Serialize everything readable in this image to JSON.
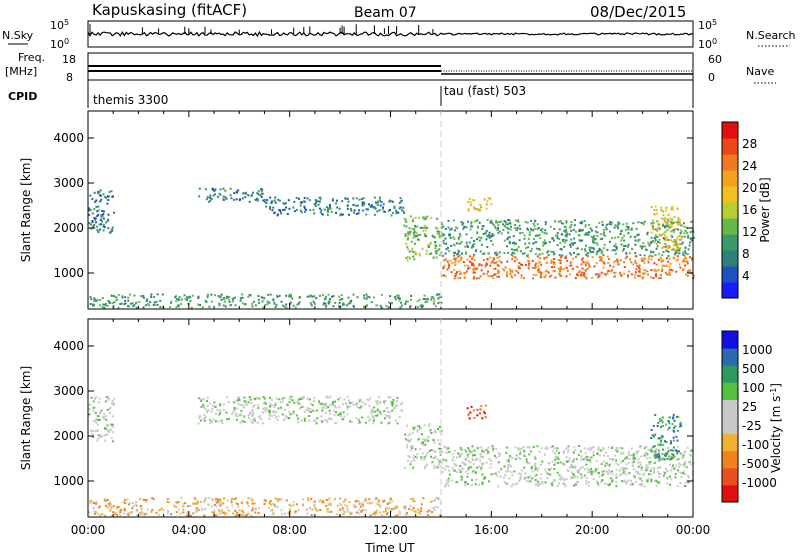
{
  "header": {
    "station": "Kapuskasing (fitACF)",
    "beam": "Beam 07",
    "date": "08/Dec/2015"
  },
  "strips": {
    "nsky_label": "N.Sky",
    "nsearch_label": "N.Search",
    "freq_label_1": "Freq.",
    "freq_label_2": "[MHz]",
    "nave_label": "Nave",
    "cpid_label": "CPID",
    "nsky_ticks": [
      "10^5",
      "10^0"
    ],
    "nsearch_ticks": [
      "10^5",
      "10^0"
    ],
    "freq_ticks": [
      "18",
      "8"
    ],
    "nave_ticks": [
      "60",
      "0"
    ],
    "cpid_programs": [
      {
        "name": "themis 3300",
        "start_hour": 0,
        "end_hour": 14
      },
      {
        "name": "tau (fast) 503",
        "start_hour": 14,
        "end_hour": 24
      }
    ]
  },
  "chart_data": [
    {
      "type": "heatmap",
      "panel": "power",
      "xlabel": "",
      "ylabel": "Slant Range [km]",
      "xlim": [
        0,
        24
      ],
      "ylim": [
        200,
        4600
      ],
      "y_ticks": [
        1000,
        2000,
        3000,
        4000
      ],
      "colorbar": {
        "label": "Power [dB]",
        "ticks": [
          "4",
          "8",
          "12",
          "16",
          "20",
          "24",
          "28"
        ],
        "colors": [
          "#1a1aff",
          "#2050c0",
          "#2f7f7a",
          "#3a9a6a",
          "#66b84a",
          "#b8cc33",
          "#f0c020",
          "#f5a020",
          "#f07820",
          "#e84818",
          "#e01010"
        ]
      },
      "regions": [
        {
          "from_hour": 0.0,
          "to_hour": 1.0,
          "range_km": [
            1900,
            2900
          ],
          "level": 2
        },
        {
          "from_hour": 4.3,
          "to_hour": 7.0,
          "range_km": [
            2600,
            2900
          ],
          "level": 2
        },
        {
          "from_hour": 7.0,
          "to_hour": 12.5,
          "range_km": [
            2300,
            2700
          ],
          "level": 2
        },
        {
          "from_hour": 12.5,
          "to_hour": 14.0,
          "range_km": [
            1300,
            2300
          ],
          "level": 4
        },
        {
          "from_hour": 14.0,
          "to_hour": 24.0,
          "range_km": [
            900,
            1400
          ],
          "level": 8
        },
        {
          "from_hour": 14.0,
          "to_hour": 24.0,
          "range_km": [
            1400,
            2200
          ],
          "level": 3
        },
        {
          "from_hour": 0.0,
          "to_hour": 14.0,
          "range_km": [
            250,
            550
          ],
          "level": 3
        },
        {
          "from_hour": 15.0,
          "to_hour": 16.0,
          "range_km": [
            2400,
            2700
          ],
          "level": 6
        },
        {
          "from_hour": 22.3,
          "to_hour": 23.5,
          "range_km": [
            1500,
            2500
          ],
          "level": 6
        }
      ]
    },
    {
      "type": "heatmap",
      "panel": "velocity",
      "xlabel": "Time UT",
      "ylabel": "Slant Range [km]",
      "xlim": [
        0,
        24
      ],
      "ylim": [
        200,
        4600
      ],
      "x_tick_labels": [
        "00:00",
        "04:00",
        "08:00",
        "12:00",
        "16:00",
        "20:00",
        "00:00"
      ],
      "y_ticks": [
        1000,
        2000,
        3000,
        4000
      ],
      "colorbar": {
        "label": "Velocity [m s^-1]",
        "ticks": [
          "1000",
          "500",
          "100",
          "25",
          "-25",
          "-100",
          "-500",
          "-1000"
        ],
        "colors": [
          "#1010e0",
          "#2a6ab0",
          "#2f9a60",
          "#56c040",
          "#c8c8c8",
          "#c8c8c8",
          "#f0b030",
          "#f08020",
          "#e85020",
          "#e01010"
        ]
      },
      "regions": [
        {
          "from_hour": 0.0,
          "to_hour": 1.0,
          "range_km": [
            1900,
            2900
          ],
          "level": 4
        },
        {
          "from_hour": 4.3,
          "to_hour": 12.5,
          "range_km": [
            2300,
            2900
          ],
          "level": 4
        },
        {
          "from_hour": 12.5,
          "to_hour": 14.0,
          "range_km": [
            1300,
            2300
          ],
          "level": 4
        },
        {
          "from_hour": 14.0,
          "to_hour": 24.0,
          "range_km": [
            900,
            1800
          ],
          "level": 4
        },
        {
          "from_hour": 0.0,
          "to_hour": 14.0,
          "range_km": [
            250,
            650
          ],
          "level": 6
        },
        {
          "from_hour": 15.0,
          "to_hour": 16.0,
          "range_km": [
            2400,
            2700
          ],
          "level": 8
        },
        {
          "from_hour": 22.3,
          "to_hour": 23.5,
          "range_km": [
            1500,
            2500
          ],
          "level": 2
        }
      ]
    }
  ]
}
